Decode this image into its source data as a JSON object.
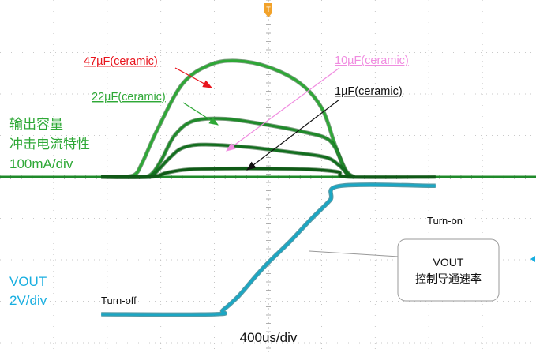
{
  "chart_data": {
    "type": "line",
    "annotations": {
      "c47": "47µF(ceramic)",
      "c22": "22µF(ceramic)",
      "c10": "10µF(ceramic)",
      "c1": "1µF(ceramic)",
      "ch_current": [
        "输出容量",
        "冲击电流特性",
        "100mA/div"
      ],
      "ch_voltage": [
        "VOUT",
        "2V/div"
      ],
      "turn_off": "Turn-off",
      "turn_on": "Turn-on",
      "callout": [
        "VOUT",
        "控制导通速率"
      ],
      "timebase": "400us/div"
    },
    "x_divisions": 10,
    "y_divisions": 8,
    "current_series": [
      {
        "name": "47µF(ceramic)",
        "color": "#2ea836",
        "t": [
          -3.12,
          -2.8,
          -2.5,
          -2.35,
          -2.05,
          -1.6,
          -1.1,
          -0.6,
          0,
          0.6,
          1.0,
          1.25,
          1.45,
          1.6
        ],
        "div": [
          0,
          0,
          0.05,
          0.35,
          1.2,
          2.25,
          2.7,
          2.8,
          2.65,
          2.25,
          1.65,
          0.75,
          0.15,
          0
        ]
      },
      {
        "name": "22µF(ceramic)",
        "color": "#1f8a2a",
        "t": [
          -3.12,
          -2.45,
          -2.2,
          -2.0,
          -1.75,
          -1.4,
          -0.8,
          0,
          0.6,
          1.05,
          1.25,
          1.45,
          1.6
        ],
        "div": [
          0,
          0,
          0.05,
          0.4,
          1.0,
          1.35,
          1.4,
          1.25,
          1.1,
          0.95,
          0.7,
          0.1,
          0
        ]
      },
      {
        "name": "10µF(ceramic)",
        "color": "#126e1e",
        "t": [
          -3.12,
          -2.35,
          -2.15,
          -1.85,
          -1.6,
          -1.2,
          -0.4,
          0.4,
          1.05,
          1.3,
          1.5,
          1.6
        ],
        "div": [
          0,
          0,
          0.05,
          0.45,
          0.7,
          0.78,
          0.72,
          0.6,
          0.48,
          0.3,
          0.05,
          0
        ]
      },
      {
        "name": "1µF(ceramic)",
        "color": "#0f5a16",
        "t": [
          -3.12,
          -2.2,
          -1.9,
          -1.5,
          -0.8,
          0,
          0.8,
          1.3,
          1.5,
          3.12
        ],
        "div": [
          0,
          0,
          0.1,
          0.18,
          0.2,
          0.2,
          0.18,
          0.12,
          0,
          0
        ]
      }
    ],
    "voltage_series": {
      "name": "VOUT",
      "color": "#1aa7c4",
      "t": [
        -3.12,
        -1.0,
        -0.85,
        -0.55,
        -0.25,
        0,
        0.4,
        0.8,
        1.15,
        1.35,
        3.12
      ],
      "div": [
        0,
        0,
        0.1,
        0.45,
        0.9,
        1.25,
        1.75,
        2.3,
        2.75,
        3.1,
        3.1
      ]
    },
    "colors": {
      "label_green": "#2ea836",
      "label_red": "#e8141d",
      "label_pink": "#f08ce0",
      "label_black": "#111111",
      "vout_cyan": "#17aee0",
      "trigger": "#f2a22a"
    }
  }
}
